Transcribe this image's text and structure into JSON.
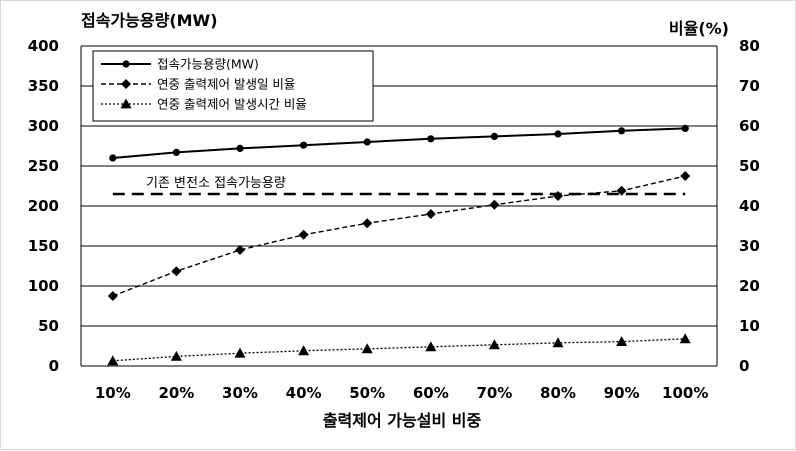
{
  "chart_data": {
    "type": "line",
    "title": "",
    "xlabel": "출력제어 가능설비 비중",
    "ylabel": "접속가능용량(MW)",
    "y2label": "비율(%)",
    "categories": [
      "10%",
      "20%",
      "30%",
      "40%",
      "50%",
      "60%",
      "70%",
      "80%",
      "90%",
      "100%"
    ],
    "ylim": [
      0,
      400
    ],
    "yticks": [
      "0",
      "50",
      "100",
      "150",
      "200",
      "250",
      "300",
      "350",
      "400"
    ],
    "y2lim": [
      0,
      80
    ],
    "y2ticks": [
      "0",
      "10",
      "20",
      "30",
      "40",
      "50",
      "60",
      "70",
      "80"
    ],
    "grid": true,
    "legend_position": "top-left",
    "series": [
      {
        "name": "접속가능용량(MW)",
        "axis": "left",
        "marker": "circle",
        "style": "solid",
        "values": [
          260,
          267,
          272,
          276,
          280,
          284,
          287,
          290,
          294,
          297
        ]
      },
      {
        "name": "연중 출력제어 발생일 비율",
        "axis": "right",
        "marker": "diamond",
        "style": "dashed",
        "values": [
          17.5,
          23.7,
          29.0,
          32.8,
          35.7,
          38.0,
          40.3,
          42.5,
          43.8,
          47.5
        ]
      },
      {
        "name": "연중 출력제어 발생시간 비율",
        "axis": "right",
        "marker": "triangle",
        "style": "dotted",
        "values": [
          1.3,
          2.4,
          3.2,
          3.8,
          4.3,
          4.8,
          5.3,
          5.8,
          6.1,
          6.8
        ]
      }
    ],
    "reference_line": {
      "label": "기존 변전소 접속가능용량",
      "axis": "left",
      "value": 215,
      "style": "dashed"
    }
  }
}
